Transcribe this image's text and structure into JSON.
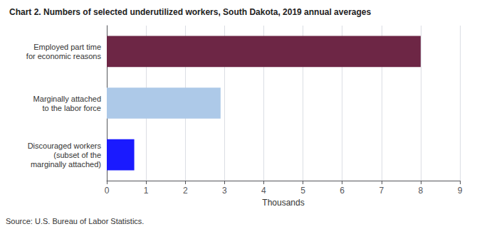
{
  "chart_data": {
    "type": "bar",
    "orientation": "horizontal",
    "title": "Chart 2. Numbers of selected underutilized workers, South Dakota, 2019 annual averages",
    "categories": [
      "Discouraged workers\n(subset of the\nmarginally attached)",
      "Marginally attached\nto the labor force",
      "Employed part time\nfor economic reasons"
    ],
    "values": [
      0.7,
      2.9,
      8.0
    ],
    "colors": [
      "#1a1aff",
      "#adc9e8",
      "#6d2645"
    ],
    "xlabel": "Thousands",
    "xlim": [
      0,
      9
    ],
    "xticks": [
      0,
      1,
      2,
      3,
      4,
      5,
      6,
      7,
      8,
      9
    ],
    "grid": true,
    "source": "Source: U.S. Bureau of Labor Statistics."
  }
}
